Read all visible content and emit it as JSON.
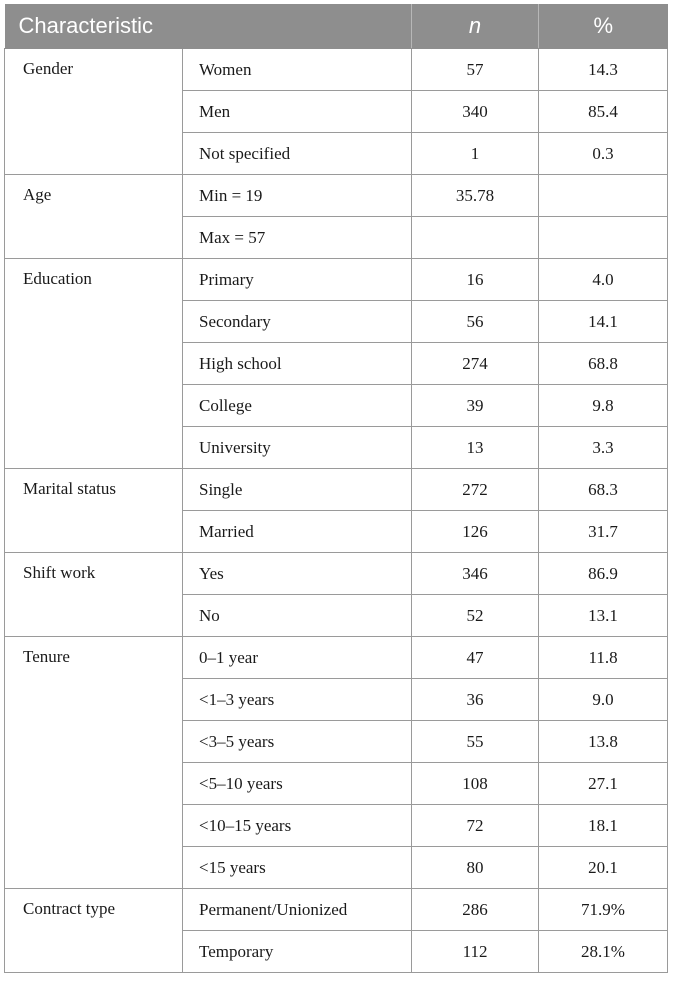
{
  "table": {
    "headers": {
      "characteristic": "Characteristic",
      "n": "n",
      "percent": "%"
    },
    "groups": [
      {
        "label": "Gender",
        "rows": [
          {
            "sub": "Women",
            "n": "57",
            "pct": "14.3"
          },
          {
            "sub": "Men",
            "n": "340",
            "pct": "85.4"
          },
          {
            "sub": "Not specified",
            "n": "1",
            "pct": "0.3"
          }
        ]
      },
      {
        "label": "Age",
        "rows": [
          {
            "sub": "Min = 19",
            "n": "35.78",
            "pct": ""
          },
          {
            "sub": "Max = 57",
            "n": "",
            "pct": ""
          }
        ]
      },
      {
        "label": "Education",
        "rows": [
          {
            "sub": "Primary",
            "n": "16",
            "pct": "4.0"
          },
          {
            "sub": "Secondary",
            "n": "56",
            "pct": "14.1"
          },
          {
            "sub": "High school",
            "n": "274",
            "pct": "68.8"
          },
          {
            "sub": "College",
            "n": "39",
            "pct": "9.8"
          },
          {
            "sub": "University",
            "n": "13",
            "pct": "3.3"
          }
        ]
      },
      {
        "label": "Marital status",
        "rows": [
          {
            "sub": "Single",
            "n": "272",
            "pct": "68.3"
          },
          {
            "sub": "Married",
            "n": "126",
            "pct": "31.7"
          }
        ]
      },
      {
        "label": "Shift work",
        "rows": [
          {
            "sub": "Yes",
            "n": "346",
            "pct": "86.9"
          },
          {
            "sub": "No",
            "n": "52",
            "pct": "13.1"
          }
        ]
      },
      {
        "label": "Tenure",
        "rows": [
          {
            "sub": "0–1 year",
            "n": "47",
            "pct": "11.8"
          },
          {
            "sub": "<1–3 years",
            "n": "36",
            "pct": "9.0"
          },
          {
            "sub": "<3–5 years",
            "n": "55",
            "pct": "13.8"
          },
          {
            "sub": "<5–10 years",
            "n": "108",
            "pct": "27.1"
          },
          {
            "sub": "<10–15 years",
            "n": "72",
            "pct": "18.1"
          },
          {
            "sub": "<15 years",
            "n": "80",
            "pct": "20.1"
          }
        ]
      },
      {
        "label": "Contract type",
        "rows": [
          {
            "sub": "Permanent/Unionized",
            "n": "286",
            "pct": "71.9%"
          },
          {
            "sub": "Temporary",
            "n": "112",
            "pct": "28.1%"
          }
        ]
      }
    ]
  }
}
